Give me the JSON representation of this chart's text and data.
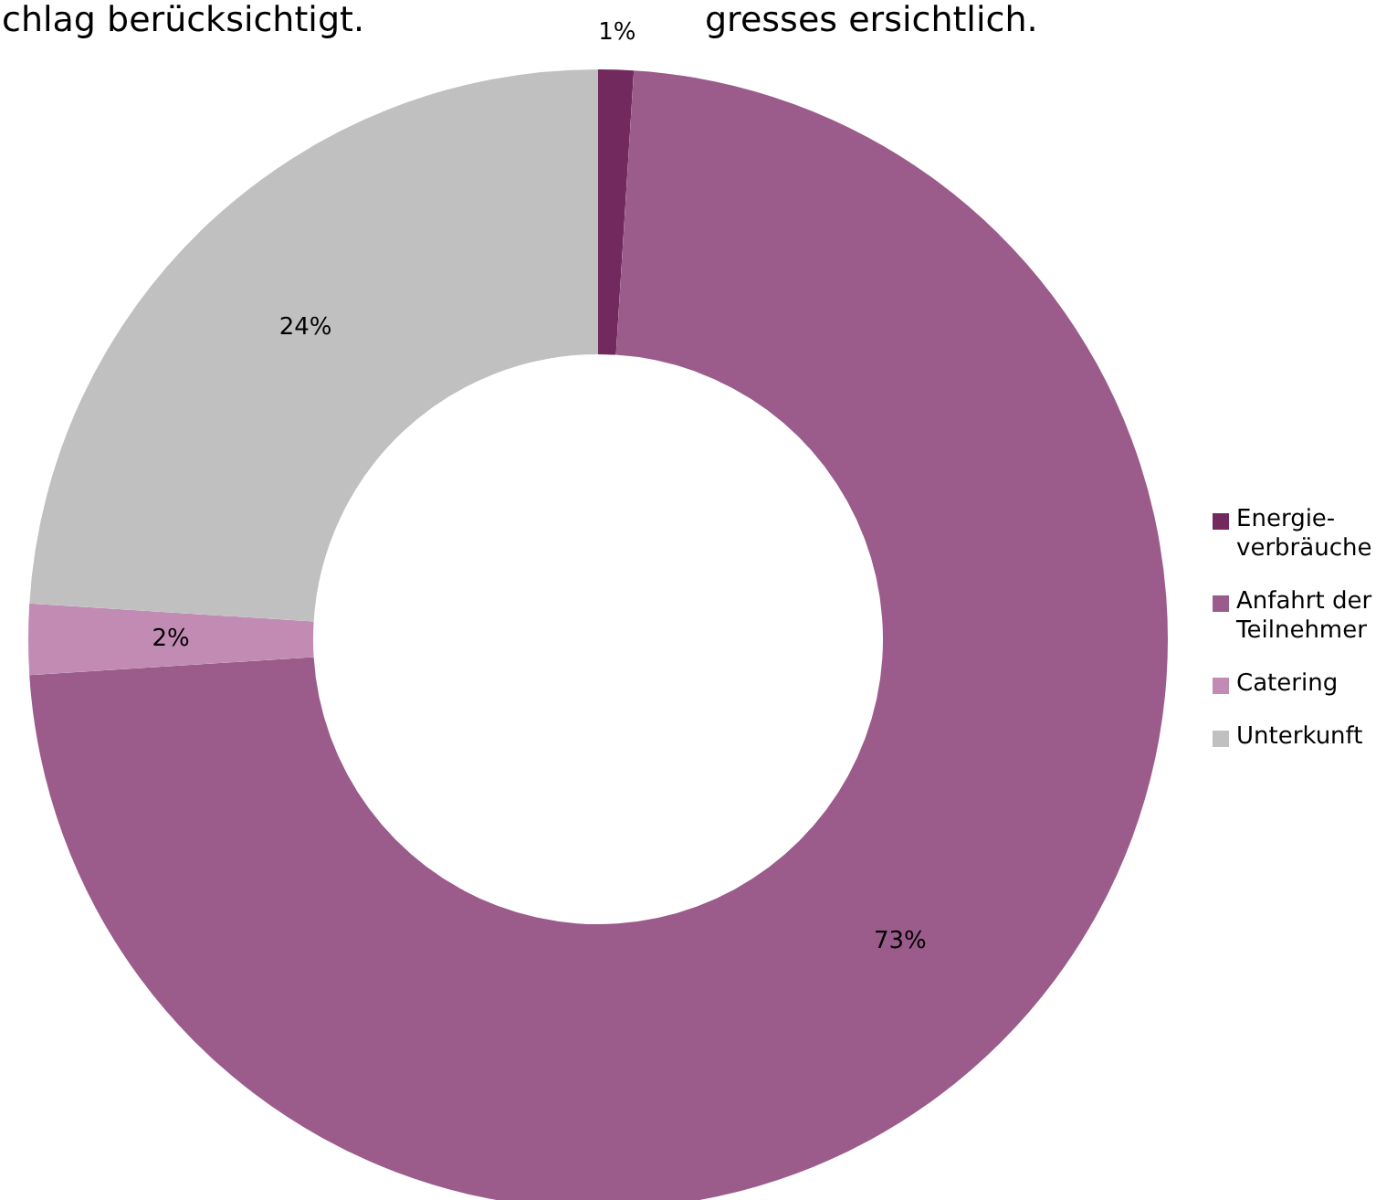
{
  "chart_data": {
    "type": "donut",
    "categories": [
      "Energie-verbräuche",
      "Anfahrt der Teilnehmer",
      "Catering",
      "Unterkunft"
    ],
    "values": [
      1,
      73,
      2,
      24
    ],
    "colors": [
      "#722a5e",
      "#9b5b8b",
      "#c18bb4",
      "#c0c0c0"
    ],
    "value_labels": [
      "1%",
      "73%",
      "2%",
      "24%"
    ],
    "legend": "right",
    "annotations": [
      "chlag berücksichtigt.",
      "gresses ersichtlich."
    ]
  }
}
